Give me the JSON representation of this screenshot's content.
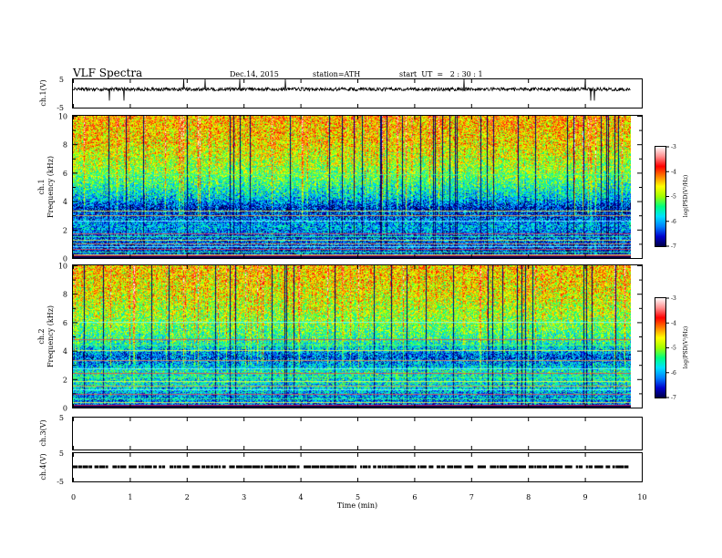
{
  "header": {
    "title": "VLF  Spectra",
    "date": "Dec.14, 2015",
    "station": "station=ATH",
    "start_ut": "start  UT  =   2 : 30 : 1"
  },
  "colors": {
    "spectrogram_stops": [
      "#000040",
      "#0000cc",
      "#0080ff",
      "#00e0ff",
      "#00ff80",
      "#a0ff00",
      "#ffff00",
      "#ff8000",
      "#ff0000",
      "#ff9090",
      "#ffffff"
    ],
    "colorbar_stops": [
      "#000040",
      "#0000cc",
      "#0080ff",
      "#00e0ff",
      "#00ff80",
      "#a0ff00",
      "#ffff00",
      "#ff8000",
      "#ff0000",
      "#ff9090",
      "#ffffff"
    ]
  },
  "chart_data": [
    {
      "type": "line",
      "panel": "ch1-waveform",
      "ylabel": "ch.1(V)",
      "ylim": [
        -5,
        5
      ],
      "yticks": [
        5,
        -5
      ],
      "xlim": [
        0,
        10
      ],
      "baseline_v": 1.5,
      "note_visible": "noisy trace with spikes, data ends near 9.8 min"
    },
    {
      "type": "heatmap",
      "panel": "ch1-spectrogram",
      "ylabel": "ch.1",
      "ylabel2": "Frequency  (kHz)",
      "ylim": [
        0,
        10
      ],
      "yticks": [
        0,
        2,
        4,
        6,
        8,
        10
      ],
      "xlim": [
        0,
        10
      ],
      "data_end_min": 9.8,
      "colorbar": {
        "label": "log(PSD(V²/Hz)",
        "range": [
          -7,
          -3
        ],
        "ticks": [
          "-3",
          "-4",
          "-5",
          "-6",
          "-7"
        ]
      },
      "profile_khz": [
        [
          0,
          -6.5
        ],
        [
          1.5,
          -6.3
        ],
        [
          2.2,
          -6.0
        ],
        [
          3.5,
          -6.6
        ],
        [
          4.2,
          -5.9
        ],
        [
          6,
          -5.1
        ],
        [
          8,
          -4.6
        ],
        [
          10,
          -4.4
        ]
      ],
      "lines_khz": [
        0.2,
        0.4,
        0.6,
        0.8,
        1.0,
        1.2,
        1.5,
        1.7,
        2.6,
        3.0,
        3.3,
        5.9
      ]
    },
    {
      "type": "heatmap",
      "panel": "ch2-spectrogram",
      "ylabel": "ch.2",
      "ylabel2": "Frequency  (kHz)",
      "ylim": [
        0,
        10
      ],
      "yticks": [
        0,
        2,
        4,
        6,
        8,
        10
      ],
      "xlim": [
        0,
        10
      ],
      "data_end_min": 9.8,
      "colorbar": {
        "label": "log(PSD(V²/Hz)",
        "range": [
          -7,
          -3
        ],
        "ticks": [
          "-3",
          "-4",
          "-5",
          "-6",
          "-7"
        ]
      },
      "profile_khz": [
        [
          0,
          -6.3
        ],
        [
          1.5,
          -5.8
        ],
        [
          2.5,
          -5.6
        ],
        [
          3.5,
          -6.4
        ],
        [
          4.5,
          -5.6
        ],
        [
          6,
          -5.1
        ],
        [
          8,
          -4.7
        ],
        [
          10,
          -4.5
        ]
      ],
      "lines_khz": [
        0.3,
        0.6,
        0.9,
        1.2,
        1.5,
        1.8,
        2.1,
        2.4,
        2.7,
        3.3,
        4.0,
        4.4,
        4.8,
        6.0
      ]
    },
    {
      "type": "line",
      "panel": "ch3-waveform",
      "ylabel": "ch.3(V)",
      "ylim": [
        -5,
        5
      ],
      "yticks": [
        5
      ],
      "xlim": [
        0,
        10
      ],
      "note_visible": "empty"
    },
    {
      "type": "line",
      "panel": "ch4-waveform",
      "ylabel": "ch.4(V)",
      "ylim": [
        -5,
        5
      ],
      "yticks": [
        5,
        -5
      ],
      "xlim": [
        0,
        10
      ],
      "level_v": 0,
      "note_visible": "dashed segments near 0 V"
    }
  ],
  "xaxis": {
    "label": "Time  (min)",
    "ticks": [
      "0",
      "1",
      "2",
      "3",
      "4",
      "5",
      "6",
      "7",
      "8",
      "9",
      "10"
    ]
  }
}
